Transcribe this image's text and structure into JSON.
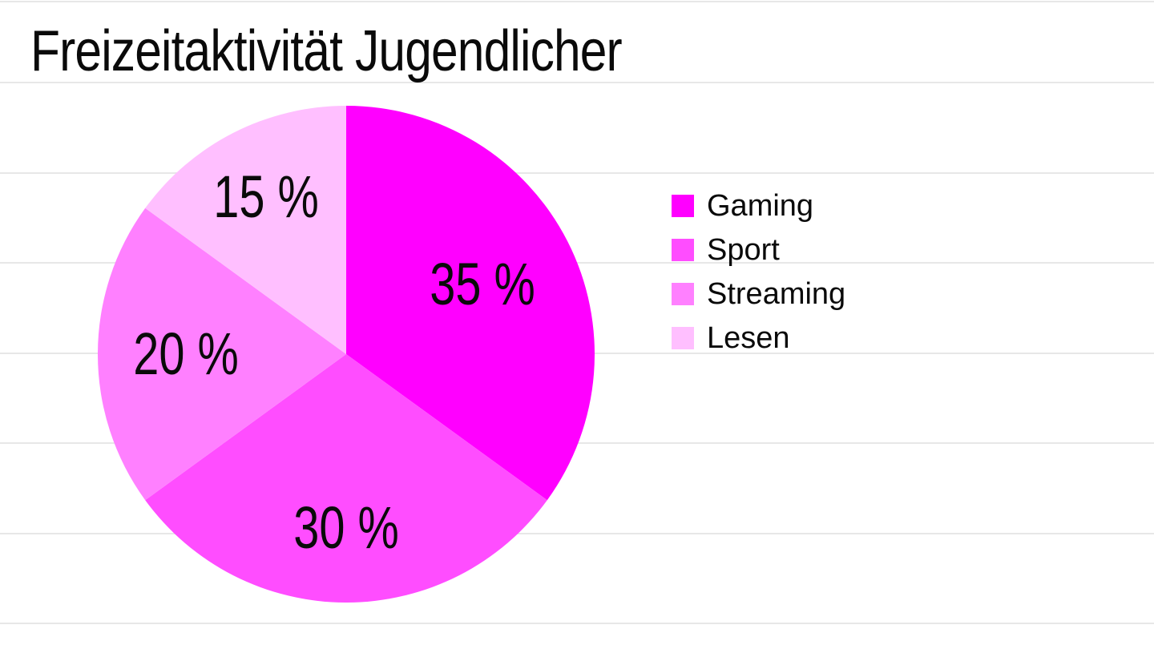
{
  "page": {
    "background": "#ffffff",
    "gridline_color": "#e7e7e7"
  },
  "chart_data": {
    "type": "pie",
    "title": "Freizeitaktivität Jugendlicher",
    "start_angle_deg": 0,
    "direction": "clockwise",
    "legend_position": "right",
    "grid": "horizontal-lines",
    "label_color": "#000000",
    "categories": [
      "Gaming",
      "Sport",
      "Streaming",
      "Lesen"
    ],
    "values": [
      35,
      30,
      20,
      15
    ],
    "slices": [
      {
        "label": "Gaming",
        "value": 35,
        "display": "35 %",
        "color": "#ff00ff"
      },
      {
        "label": "Sport",
        "value": 30,
        "display": "30 %",
        "color": "#ff4dff"
      },
      {
        "label": "Streaming",
        "value": 20,
        "display": "20 %",
        "color": "#ff80ff"
      },
      {
        "label": "Lesen",
        "value": 15,
        "display": "15 %",
        "color": "#ffbfff"
      }
    ]
  }
}
